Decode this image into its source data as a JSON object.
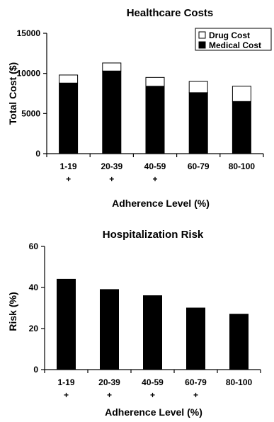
{
  "chart_data": [
    {
      "type": "bar",
      "stacked": true,
      "title": "Healthcare Costs",
      "xlabel": "Adherence Level (%)",
      "ylabel": "Total Cost ($)",
      "ylim": [
        0,
        15000
      ],
      "yticks": [
        0,
        5000,
        10000,
        15000
      ],
      "categories": [
        "1-19",
        "20-39",
        "40-59",
        "60-79",
        "80-100"
      ],
      "significance": [
        "+",
        "+",
        "+",
        "",
        ""
      ],
      "series": [
        {
          "name": "Medical Cost",
          "color": "#000000",
          "values": [
            8800,
            10300,
            8400,
            7600,
            6500
          ]
        },
        {
          "name": "Drug Cost",
          "color": "#ffffff",
          "values": [
            1000,
            1000,
            1100,
            1400,
            1900
          ]
        }
      ],
      "legend": {
        "position": "top-right",
        "entries": [
          "Drug Cost",
          "Medical Cost"
        ]
      },
      "grid": false
    },
    {
      "type": "bar",
      "title": "Hospitalization Risk",
      "xlabel": "Adherence Level (%)",
      "ylabel": "Risk (%)",
      "ylim": [
        0,
        60
      ],
      "yticks": [
        0,
        20,
        40,
        60
      ],
      "categories": [
        "1-19",
        "20-39",
        "40-59",
        "60-79",
        "80-100"
      ],
      "significance": [
        "+",
        "+",
        "+",
        "+",
        ""
      ],
      "series": [
        {
          "name": "",
          "color": "#000000",
          "values": [
            44,
            39,
            36,
            30,
            27
          ]
        }
      ],
      "grid": false
    }
  ]
}
